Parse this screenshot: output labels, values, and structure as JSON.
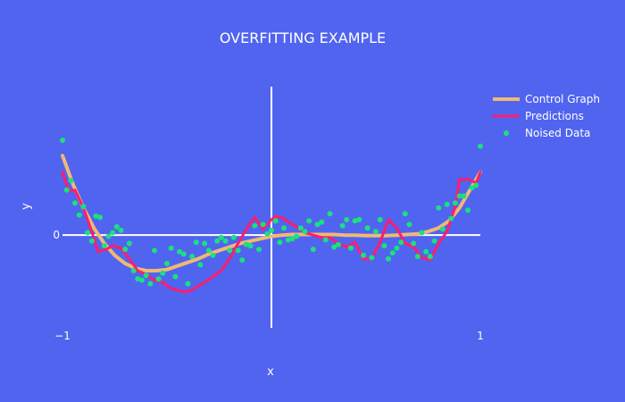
{
  "chart_data": {
    "type": "line",
    "title": "OVERFITTING EXAMPLE",
    "xlabel": "x",
    "ylabel": "y",
    "xlim": [
      -1,
      1
    ],
    "ylim": [
      -0.88,
      1.38
    ],
    "x_ticks": [
      {
        "value": -1,
        "label": "−1"
      },
      {
        "value": 1,
        "label": "1"
      }
    ],
    "y_ticks": [
      {
        "value": 0,
        "label": "0"
      }
    ],
    "grid": false,
    "zero_lines": true,
    "legend_position": "top-right",
    "colors": {
      "background": "#5064f0",
      "control": "#f0b973",
      "predictions": "#ff1d6d",
      "noised": "#1be07e",
      "axis": "#ffffff"
    },
    "series": [
      {
        "name": "Control Graph",
        "kind": "line",
        "x": [
          -1,
          -0.95,
          -0.9,
          -0.85,
          -0.8,
          -0.75,
          -0.7,
          -0.65,
          -0.6,
          -0.55,
          -0.5,
          -0.45,
          -0.4,
          -0.35,
          -0.3,
          -0.25,
          -0.2,
          -0.15,
          -0.1,
          -0.05,
          0,
          0.05,
          0.1,
          0.15,
          0.2,
          0.25,
          0.3,
          0.35,
          0.4,
          0.45,
          0.5,
          0.55,
          0.6,
          0.65,
          0.7,
          0.75,
          0.8,
          0.85,
          0.9,
          0.95,
          1
        ],
        "y": [
          0.67,
          0.43,
          0.23,
          0.06,
          -0.07,
          -0.17,
          -0.24,
          -0.28,
          -0.3,
          -0.3,
          -0.29,
          -0.26,
          -0.23,
          -0.2,
          -0.16,
          -0.13,
          -0.1,
          -0.07,
          -0.05,
          -0.03,
          -0.01,
          0,
          0.005,
          0.005,
          0.005,
          0.005,
          0.005,
          0,
          0,
          -0.005,
          -0.005,
          -0.005,
          0,
          0.005,
          0.01,
          0.03,
          0.06,
          0.12,
          0.23,
          0.38,
          0.53
        ]
      },
      {
        "name": "Predictions",
        "kind": "line",
        "x": [
          -1,
          -0.97,
          -0.94,
          -0.9,
          -0.86,
          -0.83,
          -0.79,
          -0.76,
          -0.72,
          -0.68,
          -0.64,
          -0.6,
          -0.56,
          -0.52,
          -0.48,
          -0.44,
          -0.4,
          -0.36,
          -0.32,
          -0.28,
          -0.24,
          -0.2,
          -0.16,
          -0.12,
          -0.08,
          -0.04,
          0,
          0.02,
          0.04,
          0.06,
          0.08,
          0.12,
          0.16,
          0.2,
          0.24,
          0.28,
          0.32,
          0.36,
          0.4,
          0.44,
          0.48,
          0.52,
          0.56,
          0.6,
          0.64,
          0.68,
          0.72,
          0.76,
          0.8,
          0.84,
          0.88,
          0.9,
          0.94,
          0.98,
          1
        ],
        "y": [
          0.53,
          0.37,
          0.38,
          0.23,
          0.03,
          -0.14,
          -0.12,
          -0.09,
          -0.11,
          -0.2,
          -0.3,
          -0.33,
          -0.38,
          -0.4,
          -0.45,
          -0.47,
          -0.48,
          -0.44,
          -0.4,
          -0.35,
          -0.3,
          -0.2,
          -0.07,
          0.05,
          0.15,
          0.05,
          0.13,
          0.16,
          0.15,
          0.14,
          0.11,
          0.07,
          0.02,
          0,
          -0.02,
          -0.02,
          -0.07,
          -0.1,
          -0.06,
          -0.2,
          -0.2,
          -0.06,
          0.13,
          0.06,
          -0.07,
          -0.1,
          -0.19,
          -0.21,
          -0.07,
          0.03,
          0.24,
          0.47,
          0.47,
          0.44,
          0.53
        ]
      },
      {
        "name": "Noised Data",
        "kind": "scatter",
        "x": [
          -1,
          -0.98,
          -0.96,
          -0.94,
          -0.92,
          -0.9,
          -0.88,
          -0.86,
          -0.84,
          -0.82,
          -0.8,
          -0.78,
          -0.76,
          -0.74,
          -0.72,
          -0.7,
          -0.68,
          -0.66,
          -0.64,
          -0.62,
          -0.6,
          -0.58,
          -0.56,
          -0.54,
          -0.52,
          -0.5,
          -0.48,
          -0.46,
          -0.44,
          -0.42,
          -0.4,
          -0.38,
          -0.36,
          -0.34,
          -0.32,
          -0.3,
          -0.28,
          -0.26,
          -0.24,
          -0.22,
          -0.2,
          -0.18,
          -0.16,
          -0.14,
          -0.12,
          -0.1,
          -0.08,
          -0.06,
          -0.04,
          -0.02,
          0,
          0.02,
          0.04,
          0.06,
          0.08,
          0.1,
          0.12,
          0.14,
          0.16,
          0.18,
          0.2,
          0.22,
          0.24,
          0.26,
          0.28,
          0.3,
          0.32,
          0.34,
          0.36,
          0.38,
          0.4,
          0.42,
          0.44,
          0.46,
          0.48,
          0.5,
          0.52,
          0.54,
          0.56,
          0.58,
          0.6,
          0.62,
          0.64,
          0.66,
          0.68,
          0.7,
          0.72,
          0.74,
          0.76,
          0.78,
          0.8,
          0.82,
          0.84,
          0.86,
          0.88,
          0.9,
          0.92,
          0.94,
          0.96,
          0.98,
          1
        ],
        "y": [
          0.8,
          0.38,
          0.46,
          0.27,
          0.17,
          0.24,
          0.02,
          -0.05,
          0.16,
          0.15,
          -0.09,
          -0.01,
          0.02,
          0.07,
          0.04,
          -0.12,
          -0.07,
          -0.3,
          -0.37,
          -0.38,
          -0.34,
          -0.41,
          -0.13,
          -0.37,
          -0.32,
          -0.24,
          -0.11,
          -0.35,
          -0.14,
          -0.16,
          -0.41,
          -0.18,
          -0.06,
          -0.25,
          -0.07,
          -0.13,
          -0.17,
          -0.05,
          -0.02,
          -0.05,
          -0.13,
          -0.02,
          -0.13,
          -0.21,
          -0.08,
          -0.09,
          0.08,
          -0.12,
          0.09,
          0.01,
          0.04,
          0.12,
          -0.06,
          0.06,
          -0.04,
          -0.03,
          -0.01,
          0.06,
          0.03,
          0.12,
          -0.12,
          0.09,
          0.11,
          -0.04,
          0.18,
          -0.1,
          -0.08,
          0.08,
          0.13,
          -0.11,
          0.12,
          0.13,
          -0.17,
          0.06,
          -0.19,
          0.03,
          0.13,
          -0.09,
          -0.2,
          -0.15,
          -0.11,
          -0.06,
          0.18,
          0.09,
          -0.07,
          -0.18,
          0.02,
          -0.14,
          -0.18,
          -0.05,
          0.23,
          0.05,
          0.26,
          0.14,
          0.27,
          0.33,
          0.33,
          0.21,
          0.4,
          0.42,
          0.75
        ]
      }
    ]
  }
}
